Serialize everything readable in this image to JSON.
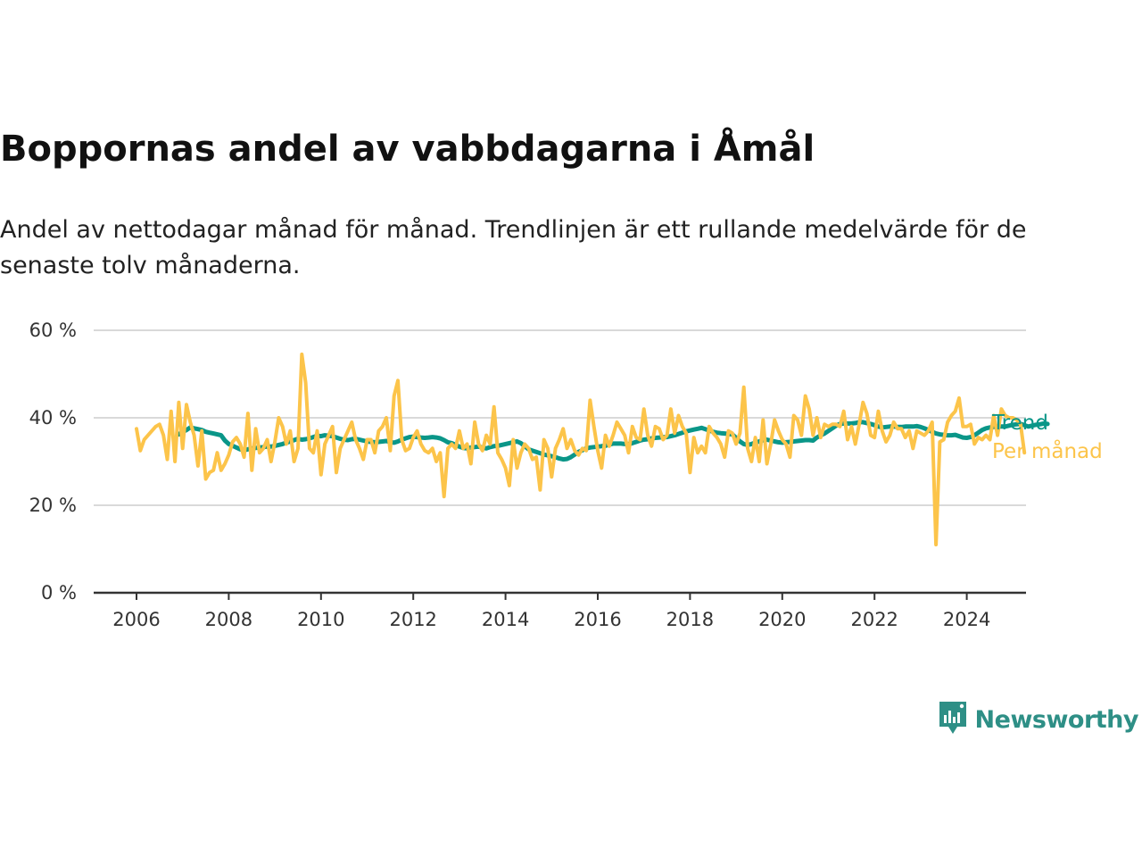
{
  "header": {
    "title": "Boppornas andel av vabbdagarna i Åmål",
    "subtitle": "Andel av nettodagar månad för månad. Trendlinjen är ett rullande medelvärde för de senaste tolv månaderna."
  },
  "brand": {
    "name": "Newsworthy",
    "icon": "newsworthy-logo-icon",
    "color": "#2e8f86"
  },
  "chart_data": {
    "type": "line",
    "x_ticks": [
      "2006",
      "2008",
      "2010",
      "2012",
      "2014",
      "2016",
      "2018",
      "2020",
      "2022",
      "2024"
    ],
    "y_ticks": [
      "0 %",
      "20 %",
      "40 %",
      "60 %"
    ],
    "xlim": [
      2005.5,
      2025.2
    ],
    "ylim": [
      0,
      60
    ],
    "grid": true,
    "legend": "inline labels at right end of lines",
    "series": [
      {
        "name": "Per månad",
        "color": "#fcc44a",
        "x_start": "2006-01",
        "step": "month",
        "values": [
          37.5,
          32.5,
          35,
          36,
          37,
          38,
          38.5,
          36,
          30.5,
          41.5,
          30,
          43.5,
          33,
          43,
          39,
          36,
          29,
          37,
          26,
          27.5,
          28,
          32,
          28,
          29.5,
          31.5,
          34.5,
          35.5,
          34,
          31,
          41,
          28,
          37.5,
          32,
          33,
          35,
          30,
          34.5,
          40,
          38,
          34,
          37,
          30,
          33,
          54.5,
          48,
          33,
          32,
          37,
          27,
          34,
          36,
          38,
          27.5,
          33,
          35,
          37,
          39,
          35,
          33,
          30.5,
          35,
          35,
          32,
          37,
          38,
          40,
          32.5,
          45,
          48.5,
          35,
          32.5,
          33,
          35.5,
          37,
          34,
          32.5,
          32,
          33,
          30,
          32,
          22,
          33,
          34,
          33,
          37,
          33,
          34,
          29.5,
          39,
          34,
          32.5,
          36,
          34,
          42.5,
          32,
          30.5,
          28.5,
          24.5,
          35,
          28.5,
          32,
          34,
          33,
          30.5,
          31,
          23.5,
          35,
          33,
          26.5,
          33,
          35,
          37.5,
          33,
          35,
          32.5,
          31.5,
          33,
          32.5,
          44,
          38,
          32.5,
          28.5,
          36,
          33.5,
          36,
          39,
          37.5,
          36,
          32,
          38,
          35.5,
          35,
          42,
          36,
          33.5,
          38,
          37.5,
          35,
          36,
          42,
          36.5,
          40.5,
          38,
          36.5,
          27.5,
          35.5,
          32,
          33.5,
          32,
          38,
          36.5,
          35.5,
          34,
          31,
          37,
          36.5,
          34,
          36.5,
          47,
          33,
          30,
          35.5,
          30,
          39.5,
          29.5,
          34,
          39.5,
          37,
          35,
          34,
          31,
          40.5,
          39.5,
          36,
          45,
          42,
          36,
          40,
          35.5,
          38.5,
          38,
          38.5,
          38.5,
          38,
          41.5,
          35,
          38,
          34,
          38.5,
          43.5,
          41,
          36,
          35.5,
          41.5,
          37,
          34.5,
          36,
          39,
          37.5,
          37.5,
          35.5,
          37,
          33,
          37,
          36.5,
          36,
          37,
          39,
          11,
          34.5,
          35,
          39,
          40.5,
          41.5,
          44.5,
          38,
          38,
          38.5,
          34,
          35.5,
          35,
          36,
          35,
          40.5,
          36,
          42,
          40.5,
          40,
          40,
          39.5,
          38.5,
          32
        ]
      },
      {
        "name": "Trend",
        "color": "#0a9688",
        "x_start": "2006-12",
        "step": "month",
        "values": [
          36.2,
          36.8,
          37.2,
          37.8,
          37.6,
          37.4,
          37.2,
          36.8,
          36.6,
          36.4,
          36.2,
          36.0,
          34.8,
          34.0,
          33.6,
          33.2,
          32.8,
          32.6,
          32.8,
          33.0,
          33.1,
          33.2,
          33.3,
          33.4,
          33.4,
          33.6,
          33.8,
          34.0,
          34.3,
          34.6,
          34.9,
          35.2,
          35.0,
          35.1,
          35.3,
          35.6,
          35.9,
          35.8,
          36.0,
          35.9,
          35.8,
          35.5,
          35.2,
          35.0,
          34.9,
          35.1,
          35.2,
          35.0,
          34.8,
          34.6,
          34.5,
          34.4,
          34.5,
          34.6,
          34.7,
          34.5,
          34.3,
          34.6,
          35.0,
          35.3,
          35.6,
          35.7,
          35.6,
          35.5,
          35.4,
          35.5,
          35.6,
          35.5,
          35.3,
          34.9,
          34.4,
          34.2,
          33.8,
          33.4,
          33.1,
          33.0,
          33.2,
          33.3,
          33.4,
          33.2,
          33.0,
          33.3,
          33.5,
          33.6,
          33.8,
          34.0,
          34.2,
          34.4,
          34.6,
          34.2,
          33.5,
          32.8,
          32.5,
          32.2,
          31.9,
          31.6,
          31.4,
          31.2,
          31.0,
          30.7,
          30.5,
          30.6,
          31.0,
          31.6,
          32.2,
          32.6,
          33.0,
          33.2,
          33.3,
          33.4,
          33.5,
          33.6,
          33.9,
          34.1,
          34.1,
          34.1,
          34.0,
          34.0,
          34.2,
          34.5,
          34.8,
          35.0,
          35.1,
          35.3,
          35.4,
          35.5,
          35.6,
          35.6,
          35.8,
          36.0,
          36.3,
          36.6,
          36.9,
          37.1,
          37.3,
          37.5,
          37.7,
          37.4,
          37.1,
          36.8,
          36.6,
          36.5,
          36.4,
          36.3,
          36.2,
          35.4,
          34.6,
          34.0,
          33.8,
          34.0,
          34.3,
          34.6,
          34.9,
          35.0,
          34.8,
          34.6,
          34.4,
          34.3,
          34.4,
          34.5,
          34.6,
          34.7,
          34.8,
          34.9,
          34.9,
          34.8,
          35.5,
          36.0,
          36.4,
          37.0,
          37.6,
          38.2,
          38.6,
          38.7,
          38.7,
          38.7,
          38.8,
          39.0,
          39.0,
          38.8,
          38.6,
          38.3,
          38.0,
          37.8,
          37.9,
          38.0,
          38.0,
          37.9,
          37.9,
          38.0,
          38.0,
          38.0,
          38.1,
          37.9,
          37.6,
          37.2,
          36.8,
          36.4,
          36.2,
          36.1,
          36.0,
          36.0,
          36.1,
          35.8,
          35.5,
          35.4,
          35.6,
          36.0,
          36.6,
          37.2,
          37.6,
          37.8,
          37.9,
          38.0,
          38.0,
          38.0,
          38.2,
          38.4,
          38.5,
          38.6,
          38.3,
          38.0,
          38.2,
          38.4,
          38.5,
          38.7,
          38.6
        ]
      }
    ]
  }
}
